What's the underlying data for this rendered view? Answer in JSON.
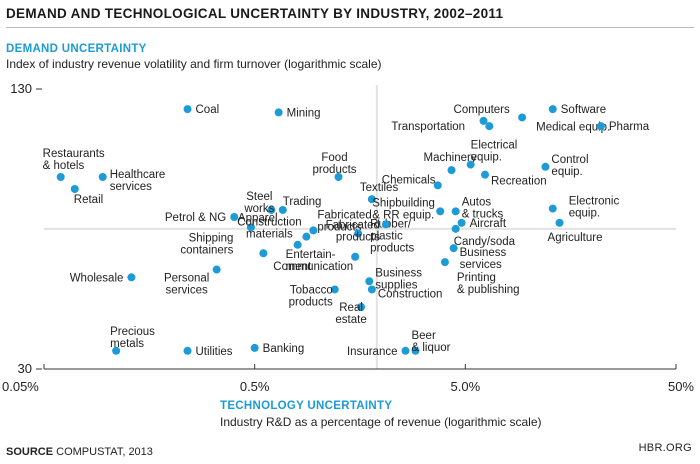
{
  "title": "DEMAND AND TECHNOLOGICAL UNCERTAINTY BY INDUSTRY, 2002–2011",
  "y_heading": "DEMAND UNCERTAINTY",
  "y_subtitle": "Index of industry revenue volatility and firm turnover (logarithmic scale)",
  "x_heading": "TECHNOLOGY UNCERTAINTY",
  "x_subtitle": "Industry R&D as a percentage of revenue (logarithmic scale)",
  "source_label": "SOURCE",
  "source_text": "COMPUSTAT, 2013",
  "credit": "HBR.ORG",
  "colors": {
    "point": "#1d9bd6",
    "heading": "#1d9bd6",
    "grid": "#e2e2e2",
    "leader": "#222222"
  },
  "chart_data": {
    "type": "scatter",
    "x_scale": "log",
    "y_scale": "log",
    "xlim": [
      0.05,
      50
    ],
    "ylim": [
      30,
      130
    ],
    "x_ticks": [
      {
        "value": 0.05,
        "label": "0.05%"
      },
      {
        "value": 0.5,
        "label": "0.5%"
      },
      {
        "value": 5,
        "label": "5.0%"
      },
      {
        "value": 50,
        "label": "50%"
      }
    ],
    "y_ticks": [
      {
        "value": 130,
        "label": "130"
      },
      {
        "value": 30,
        "label": "30"
      }
    ],
    "gridlines_at": {
      "x": 1.9,
      "y": 62.5
    },
    "points": [
      {
        "name": "Coal",
        "x": 0.24,
        "y": 117
      },
      {
        "name": "Mining",
        "x": 0.65,
        "y": 115
      },
      {
        "name": "Restaurants & hotels",
        "x": 0.06,
        "y": 82
      },
      {
        "name": "Healthcare services",
        "x": 0.095,
        "y": 82
      },
      {
        "name": "Retail",
        "x": 0.07,
        "y": 77
      },
      {
        "name": "Food products",
        "x": 1.25,
        "y": 82
      },
      {
        "name": "Steel works",
        "x": 0.6,
        "y": 69
      },
      {
        "name": "Trading",
        "x": 0.68,
        "y": 69
      },
      {
        "name": "Petrol & NG",
        "x": 0.4,
        "y": 66.5
      },
      {
        "name": "Apparel",
        "x": 0.48,
        "y": 63
      },
      {
        "name": "Fabricated products",
        "x": 0.95,
        "y": 62
      },
      {
        "name": "Construction materials",
        "x": 0.88,
        "y": 60
      },
      {
        "name": "Entertainment",
        "x": 0.8,
        "y": 57.5
      },
      {
        "name": "Shipping containers",
        "x": 0.55,
        "y": 55
      },
      {
        "name": "Rubber/plastic products",
        "x": 1.55,
        "y": 61
      },
      {
        "name": "Communication",
        "x": 1.5,
        "y": 54
      },
      {
        "name": "Personal services",
        "x": 0.33,
        "y": 50.5
      },
      {
        "name": "Wholesale",
        "x": 0.13,
        "y": 48.5
      },
      {
        "name": "Tobacco products",
        "x": 1.2,
        "y": 45.5
      },
      {
        "name": "Business supplies",
        "x": 1.75,
        "y": 47.5
      },
      {
        "name": "Construction",
        "x": 1.8,
        "y": 45.5
      },
      {
        "name": "Real estate",
        "x": 1.6,
        "y": 41.5
      },
      {
        "name": "Precious metals",
        "x": 0.11,
        "y": 33
      },
      {
        "name": "Utilities",
        "x": 0.24,
        "y": 33
      },
      {
        "name": "Banking",
        "x": 0.5,
        "y": 33.5
      },
      {
        "name": "Insurance",
        "x": 2.6,
        "y": 33
      },
      {
        "name": "Beer & liquor",
        "x": 2.9,
        "y": 33
      },
      {
        "name": "Textiles",
        "x": 1.8,
        "y": 73
      },
      {
        "name": "Fabricated products",
        "x": 2.1,
        "y": 64
      },
      {
        "name": "Shipbuilding & RR equip.",
        "x": 3.8,
        "y": 68.5
      },
      {
        "name": "Chemicals",
        "x": 3.7,
        "y": 78.5
      },
      {
        "name": "Machinery",
        "x": 4.3,
        "y": 85
      },
      {
        "name": "Computers",
        "x": 6.1,
        "y": 110
      },
      {
        "name": "Transportation",
        "x": 6.5,
        "y": 107
      },
      {
        "name": "Software",
        "x": 13,
        "y": 117
      },
      {
        "name": "Medical equip.",
        "x": 9.3,
        "y": 112
      },
      {
        "name": "Pharma",
        "x": 22,
        "y": 107
      },
      {
        "name": "Electrical equip.",
        "x": 5.3,
        "y": 87.5
      },
      {
        "name": "Control equip.",
        "x": 12,
        "y": 86.5
      },
      {
        "name": "Recreation",
        "x": 6.2,
        "y": 83
      },
      {
        "name": "Autos & trucks",
        "x": 4.5,
        "y": 68.5
      },
      {
        "name": "Aircraft",
        "x": 4.8,
        "y": 64.5
      },
      {
        "name": "Electronic equip.",
        "x": 13,
        "y": 69.5
      },
      {
        "name": "Agriculture",
        "x": 14,
        "y": 64.5
      },
      {
        "name": "Candy/soda",
        "x": 4.5,
        "y": 62.5
      },
      {
        "name": "Business services",
        "x": 4.4,
        "y": 56.5
      },
      {
        "name": "Printing & publishing",
        "x": 4.0,
        "y": 52.5
      }
    ]
  }
}
